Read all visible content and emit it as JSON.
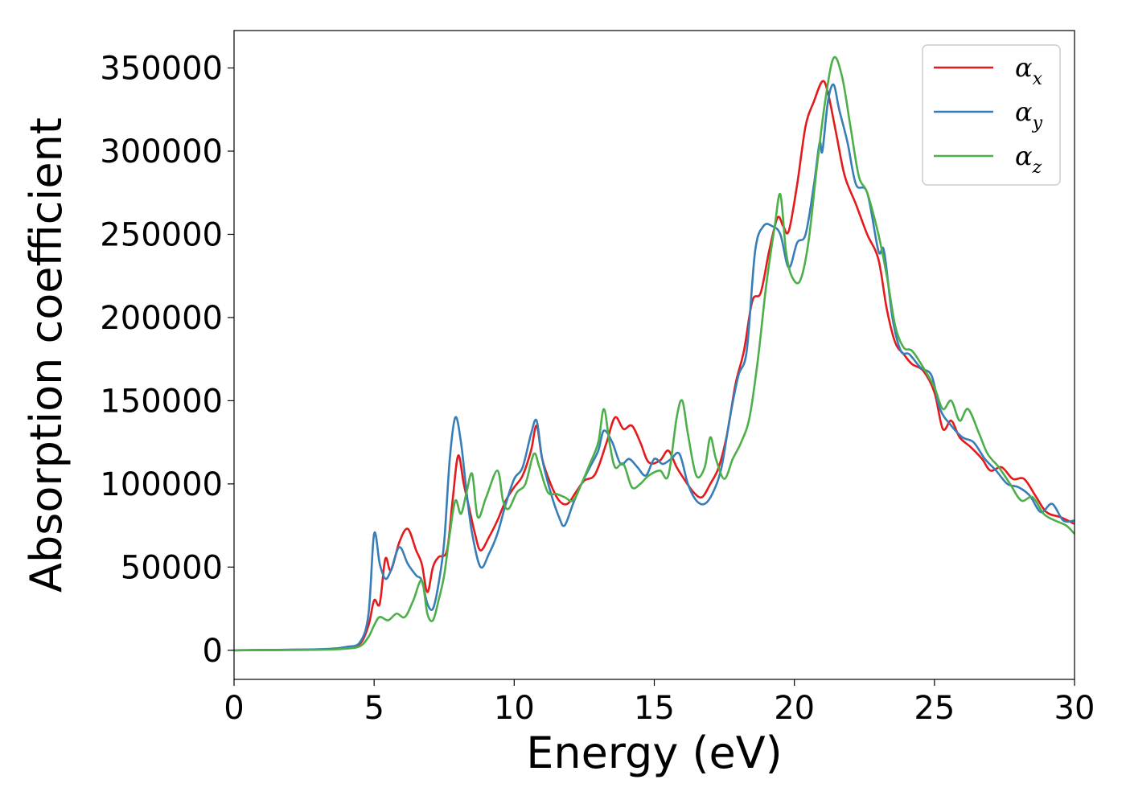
{
  "chart_data": {
    "type": "line",
    "xlabel": "Energy (eV)",
    "ylabel": "Absorption coefficient",
    "xlim": [
      0,
      30
    ],
    "ylim": [
      -17500,
      372500
    ],
    "xticks": [
      0,
      5,
      10,
      15,
      20,
      25,
      30
    ],
    "yticks": [
      0,
      50000,
      100000,
      150000,
      200000,
      250000,
      300000,
      350000
    ],
    "grid": false,
    "legend_position": "top-right",
    "series": [
      {
        "name": "α_x",
        "legend_base": "α",
        "legend_sub": "x",
        "color": "#e41a1c",
        "points": [
          [
            0,
            0
          ],
          [
            3,
            500
          ],
          [
            4,
            1500
          ],
          [
            4.5,
            4000
          ],
          [
            4.8,
            15000
          ],
          [
            5.0,
            30000
          ],
          [
            5.2,
            28000
          ],
          [
            5.4,
            55000
          ],
          [
            5.6,
            48000
          ],
          [
            5.9,
            65000
          ],
          [
            6.2,
            73000
          ],
          [
            6.5,
            60000
          ],
          [
            6.7,
            52000
          ],
          [
            6.9,
            35000
          ],
          [
            7.1,
            50000
          ],
          [
            7.3,
            56000
          ],
          [
            7.6,
            60000
          ],
          [
            7.8,
            90000
          ],
          [
            8.0,
            117000
          ],
          [
            8.2,
            100000
          ],
          [
            8.4,
            85000
          ],
          [
            8.6,
            70000
          ],
          [
            8.8,
            60000
          ],
          [
            9.1,
            68000
          ],
          [
            9.4,
            78000
          ],
          [
            9.7,
            90000
          ],
          [
            10.0,
            98000
          ],
          [
            10.3,
            105000
          ],
          [
            10.6,
            120000
          ],
          [
            10.8,
            135000
          ],
          [
            11.0,
            115000
          ],
          [
            11.3,
            100000
          ],
          [
            11.6,
            90000
          ],
          [
            11.9,
            88000
          ],
          [
            12.2,
            95000
          ],
          [
            12.5,
            102000
          ],
          [
            12.8,
            104000
          ],
          [
            13.0,
            110000
          ],
          [
            13.3,
            125000
          ],
          [
            13.6,
            140000
          ],
          [
            13.9,
            133000
          ],
          [
            14.2,
            135000
          ],
          [
            14.5,
            125000
          ],
          [
            14.8,
            113000
          ],
          [
            15.2,
            114000
          ],
          [
            15.5,
            120000
          ],
          [
            15.8,
            110000
          ],
          [
            16.1,
            102000
          ],
          [
            16.4,
            95000
          ],
          [
            16.7,
            92000
          ],
          [
            17.0,
            100000
          ],
          [
            17.3,
            110000
          ],
          [
            17.6,
            130000
          ],
          [
            17.9,
            160000
          ],
          [
            18.2,
            180000
          ],
          [
            18.5,
            210000
          ],
          [
            18.8,
            215000
          ],
          [
            19.1,
            240000
          ],
          [
            19.4,
            260000
          ],
          [
            19.6,
            255000
          ],
          [
            19.8,
            252000
          ],
          [
            20.1,
            280000
          ],
          [
            20.4,
            315000
          ],
          [
            20.7,
            330000
          ],
          [
            21.0,
            342000
          ],
          [
            21.2,
            335000
          ],
          [
            21.5,
            310000
          ],
          [
            21.8,
            285000
          ],
          [
            22.2,
            268000
          ],
          [
            22.6,
            250000
          ],
          [
            23.0,
            235000
          ],
          [
            23.3,
            205000
          ],
          [
            23.6,
            185000
          ],
          [
            23.9,
            178000
          ],
          [
            24.2,
            172000
          ],
          [
            24.6,
            168000
          ],
          [
            25.0,
            155000
          ],
          [
            25.3,
            133000
          ],
          [
            25.6,
            138000
          ],
          [
            25.9,
            128000
          ],
          [
            26.3,
            122000
          ],
          [
            26.7,
            115000
          ],
          [
            27.0,
            108000
          ],
          [
            27.4,
            110000
          ],
          [
            27.8,
            103000
          ],
          [
            28.2,
            103000
          ],
          [
            28.6,
            93000
          ],
          [
            29.0,
            83000
          ],
          [
            29.5,
            80000
          ],
          [
            30.0,
            76000
          ]
        ]
      },
      {
        "name": "α_y",
        "legend_base": "α",
        "legend_sub": "y",
        "color": "#377eb8",
        "points": [
          [
            0,
            0
          ],
          [
            3,
            600
          ],
          [
            4,
            2000
          ],
          [
            4.5,
            5000
          ],
          [
            4.8,
            22000
          ],
          [
            5.0,
            70000
          ],
          [
            5.2,
            52000
          ],
          [
            5.4,
            43000
          ],
          [
            5.6,
            48000
          ],
          [
            5.9,
            62000
          ],
          [
            6.2,
            52000
          ],
          [
            6.5,
            45000
          ],
          [
            6.7,
            42000
          ],
          [
            6.9,
            28000
          ],
          [
            7.1,
            25000
          ],
          [
            7.3,
            40000
          ],
          [
            7.5,
            65000
          ],
          [
            7.7,
            115000
          ],
          [
            7.9,
            140000
          ],
          [
            8.1,
            125000
          ],
          [
            8.3,
            95000
          ],
          [
            8.5,
            70000
          ],
          [
            8.8,
            50000
          ],
          [
            9.1,
            58000
          ],
          [
            9.4,
            70000
          ],
          [
            9.7,
            88000
          ],
          [
            10.0,
            103000
          ],
          [
            10.3,
            110000
          ],
          [
            10.6,
            130000
          ],
          [
            10.8,
            138000
          ],
          [
            11.0,
            115000
          ],
          [
            11.3,
            95000
          ],
          [
            11.6,
            80000
          ],
          [
            11.8,
            75000
          ],
          [
            12.1,
            88000
          ],
          [
            12.4,
            100000
          ],
          [
            12.7,
            110000
          ],
          [
            13.0,
            120000
          ],
          [
            13.2,
            132000
          ],
          [
            13.5,
            125000
          ],
          [
            13.8,
            112000
          ],
          [
            14.1,
            115000
          ],
          [
            14.4,
            110000
          ],
          [
            14.7,
            105000
          ],
          [
            15.0,
            115000
          ],
          [
            15.3,
            112000
          ],
          [
            15.6,
            115000
          ],
          [
            15.9,
            118000
          ],
          [
            16.2,
            100000
          ],
          [
            16.5,
            90000
          ],
          [
            16.8,
            88000
          ],
          [
            17.1,
            95000
          ],
          [
            17.4,
            110000
          ],
          [
            17.7,
            140000
          ],
          [
            18.0,
            165000
          ],
          [
            18.3,
            180000
          ],
          [
            18.6,
            240000
          ],
          [
            18.9,
            255000
          ],
          [
            19.2,
            255000
          ],
          [
            19.5,
            250000
          ],
          [
            19.8,
            230000
          ],
          [
            20.1,
            245000
          ],
          [
            20.4,
            250000
          ],
          [
            20.7,
            280000
          ],
          [
            20.9,
            305000
          ],
          [
            21.0,
            300000
          ],
          [
            21.2,
            330000
          ],
          [
            21.4,
            340000
          ],
          [
            21.6,
            325000
          ],
          [
            21.9,
            305000
          ],
          [
            22.2,
            280000
          ],
          [
            22.6,
            275000
          ],
          [
            23.0,
            240000
          ],
          [
            23.2,
            240000
          ],
          [
            23.5,
            200000
          ],
          [
            23.8,
            180000
          ],
          [
            24.1,
            178000
          ],
          [
            24.5,
            170000
          ],
          [
            24.9,
            165000
          ],
          [
            25.2,
            145000
          ],
          [
            25.6,
            135000
          ],
          [
            26.0,
            128000
          ],
          [
            26.4,
            125000
          ],
          [
            26.8,
            115000
          ],
          [
            27.2,
            108000
          ],
          [
            27.6,
            100000
          ],
          [
            28.0,
            98000
          ],
          [
            28.4,
            93000
          ],
          [
            28.8,
            83000
          ],
          [
            29.2,
            88000
          ],
          [
            29.6,
            78000
          ],
          [
            30.0,
            78000
          ]
        ]
      },
      {
        "name": "α_z",
        "legend_base": "α",
        "legend_sub": "z",
        "color": "#4daf4a",
        "points": [
          [
            0,
            0
          ],
          [
            3,
            300
          ],
          [
            4,
            1000
          ],
          [
            4.5,
            2500
          ],
          [
            4.8,
            8000
          ],
          [
            5.0,
            15000
          ],
          [
            5.2,
            20000
          ],
          [
            5.5,
            18000
          ],
          [
            5.8,
            22000
          ],
          [
            6.1,
            20000
          ],
          [
            6.4,
            30000
          ],
          [
            6.7,
            42000
          ],
          [
            6.9,
            22000
          ],
          [
            7.1,
            18000
          ],
          [
            7.3,
            30000
          ],
          [
            7.5,
            45000
          ],
          [
            7.7,
            70000
          ],
          [
            7.9,
            90000
          ],
          [
            8.1,
            82000
          ],
          [
            8.3,
            95000
          ],
          [
            8.5,
            106000
          ],
          [
            8.7,
            80000
          ],
          [
            9.0,
            92000
          ],
          [
            9.4,
            108000
          ],
          [
            9.6,
            90000
          ],
          [
            9.8,
            85000
          ],
          [
            10.1,
            95000
          ],
          [
            10.4,
            100000
          ],
          [
            10.7,
            118000
          ],
          [
            10.9,
            110000
          ],
          [
            11.2,
            95000
          ],
          [
            11.5,
            94000
          ],
          [
            11.8,
            92000
          ],
          [
            12.1,
            90000
          ],
          [
            12.4,
            100000
          ],
          [
            12.7,
            112000
          ],
          [
            13.0,
            125000
          ],
          [
            13.2,
            145000
          ],
          [
            13.4,
            125000
          ],
          [
            13.6,
            110000
          ],
          [
            13.9,
            112000
          ],
          [
            14.2,
            98000
          ],
          [
            14.5,
            100000
          ],
          [
            14.8,
            105000
          ],
          [
            15.2,
            108000
          ],
          [
            15.5,
            105000
          ],
          [
            15.8,
            140000
          ],
          [
            16.0,
            150000
          ],
          [
            16.2,
            130000
          ],
          [
            16.5,
            105000
          ],
          [
            16.8,
            110000
          ],
          [
            17.0,
            128000
          ],
          [
            17.2,
            115000
          ],
          [
            17.5,
            103000
          ],
          [
            17.8,
            115000
          ],
          [
            18.1,
            125000
          ],
          [
            18.4,
            140000
          ],
          [
            18.7,
            175000
          ],
          [
            19.0,
            220000
          ],
          [
            19.3,
            255000
          ],
          [
            19.5,
            274000
          ],
          [
            19.7,
            240000
          ],
          [
            19.9,
            225000
          ],
          [
            20.2,
            222000
          ],
          [
            20.5,
            245000
          ],
          [
            20.8,
            290000
          ],
          [
            21.1,
            330000
          ],
          [
            21.4,
            356000
          ],
          [
            21.7,
            345000
          ],
          [
            22.0,
            315000
          ],
          [
            22.3,
            285000
          ],
          [
            22.6,
            275000
          ],
          [
            23.0,
            250000
          ],
          [
            23.3,
            225000
          ],
          [
            23.6,
            195000
          ],
          [
            23.9,
            182000
          ],
          [
            24.2,
            180000
          ],
          [
            24.6,
            170000
          ],
          [
            25.0,
            158000
          ],
          [
            25.3,
            145000
          ],
          [
            25.6,
            150000
          ],
          [
            25.9,
            138000
          ],
          [
            26.2,
            145000
          ],
          [
            26.6,
            130000
          ],
          [
            26.9,
            118000
          ],
          [
            27.3,
            110000
          ],
          [
            27.7,
            100000
          ],
          [
            28.1,
            90000
          ],
          [
            28.5,
            92000
          ],
          [
            28.9,
            82000
          ],
          [
            29.3,
            78000
          ],
          [
            29.7,
            75000
          ],
          [
            30.0,
            70000
          ]
        ]
      }
    ]
  }
}
